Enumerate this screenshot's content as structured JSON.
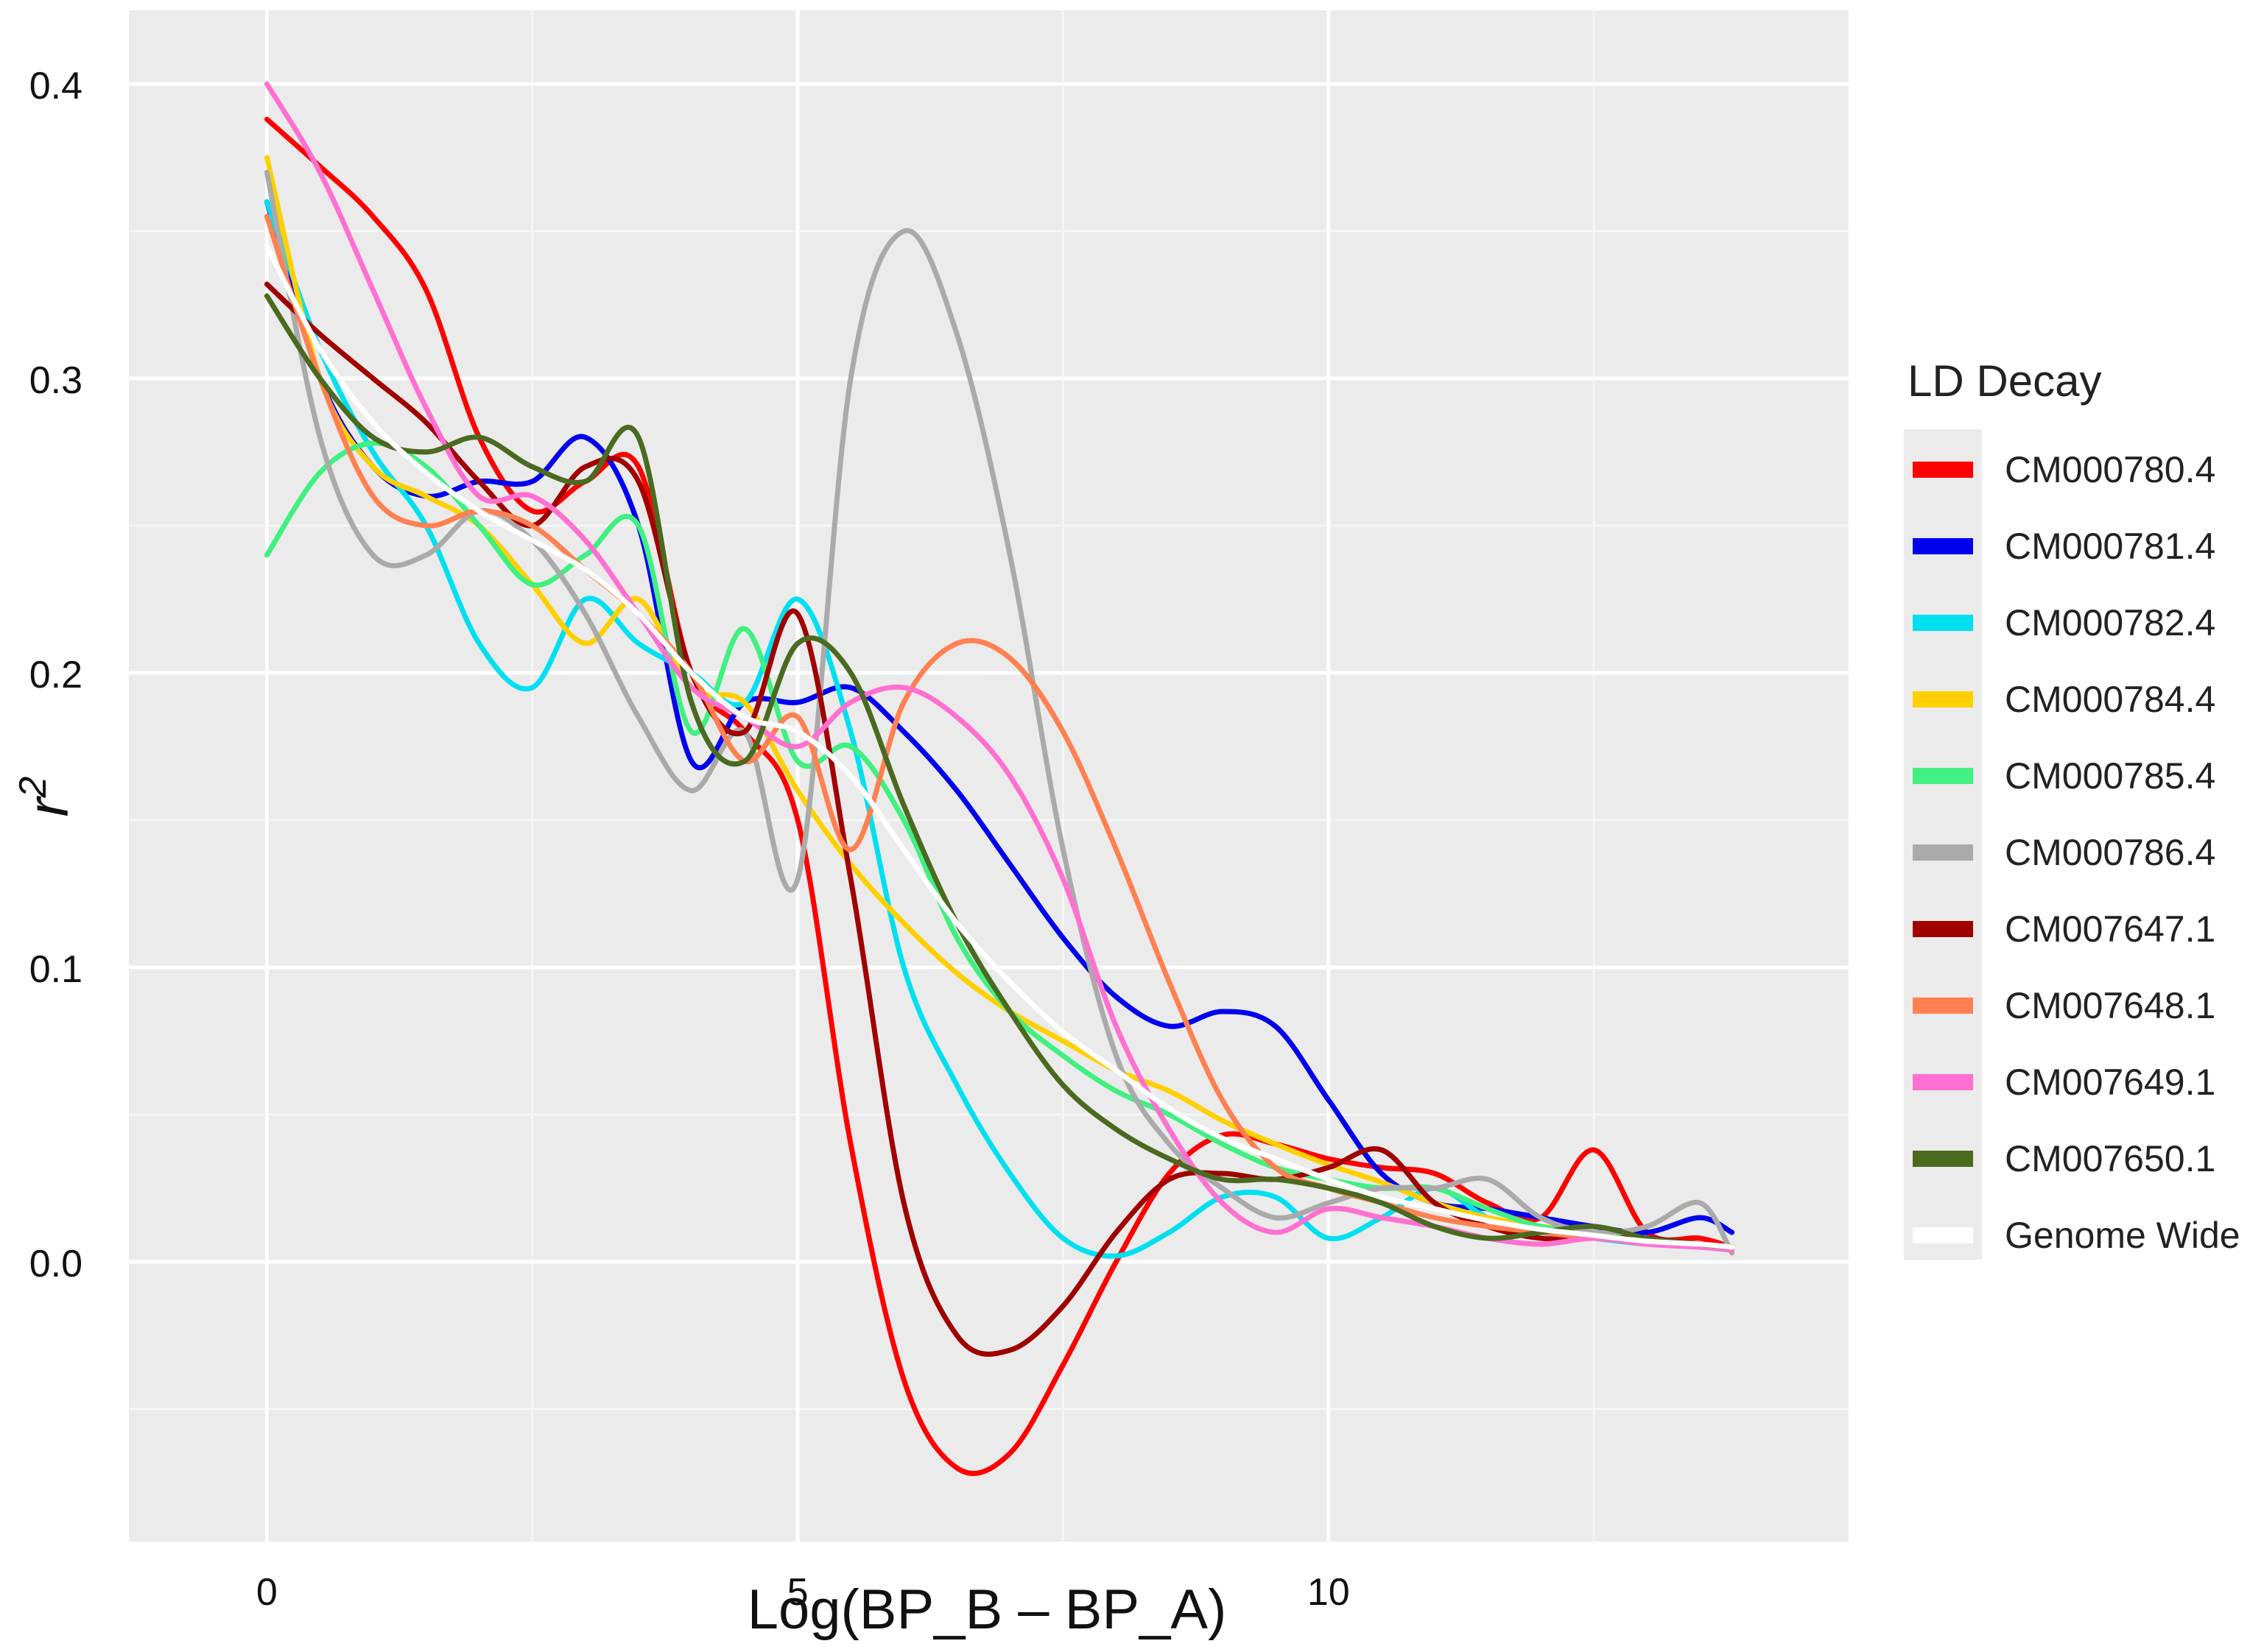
{
  "chart_data": {
    "type": "line",
    "title": "",
    "xlabel": "Log(BP_B – BP_A)",
    "ylabel": "r",
    "ylabel_superscript": "2",
    "xlim": [
      -1.3,
      14.9
    ],
    "ylim": [
      -0.095,
      0.425
    ],
    "grid": true,
    "x_ticks": [
      {
        "value": 0,
        "label": "0"
      },
      {
        "value": 5,
        "label": "5"
      },
      {
        "value": 10,
        "label": "10"
      }
    ],
    "y_ticks": [
      {
        "value": 0.0,
        "label": "0.0"
      },
      {
        "value": 0.1,
        "label": "0.1"
      },
      {
        "value": 0.2,
        "label": "0.2"
      },
      {
        "value": 0.3,
        "label": "0.3"
      },
      {
        "value": 0.4,
        "label": "0.4"
      }
    ],
    "legend": {
      "title": "LD Decay",
      "position": "right"
    },
    "series": [
      {
        "name": "CM000780.4",
        "color": "#ff0000",
        "x": [
          0,
          0.5,
          1,
          1.5,
          2,
          2.5,
          3,
          3.5,
          4,
          4.5,
          5,
          5.5,
          6,
          6.5,
          7,
          7.5,
          8,
          8.5,
          9,
          9.5,
          10,
          10.5,
          11,
          11.5,
          12,
          12.5,
          13,
          13.5,
          13.8
        ],
        "values": [
          0.388,
          0.372,
          0.355,
          0.33,
          0.28,
          0.255,
          0.265,
          0.27,
          0.2,
          0.18,
          0.15,
          0.04,
          -0.04,
          -0.07,
          -0.065,
          -0.035,
          0.0,
          0.03,
          0.043,
          0.04,
          0.035,
          0.032,
          0.03,
          0.02,
          0.015,
          0.038,
          0.01,
          0.008,
          0.005
        ]
      },
      {
        "name": "CM000781.4",
        "color": "#0000ee",
        "x": [
          0,
          0.5,
          1,
          1.5,
          2,
          2.5,
          3,
          3.5,
          4,
          4.5,
          5,
          5.5,
          6,
          6.5,
          7,
          7.5,
          8,
          8.5,
          9,
          9.5,
          10,
          10.5,
          11,
          11.5,
          12,
          12.5,
          13,
          13.5,
          13.8
        ],
        "values": [
          0.36,
          0.3,
          0.27,
          0.26,
          0.265,
          0.265,
          0.28,
          0.25,
          0.17,
          0.19,
          0.19,
          0.195,
          0.18,
          0.16,
          0.135,
          0.11,
          0.09,
          0.08,
          0.085,
          0.08,
          0.055,
          0.03,
          0.02,
          0.018,
          0.015,
          0.012,
          0.01,
          0.015,
          0.01
        ]
      },
      {
        "name": "CM000782.4",
        "color": "#00e0f0",
        "x": [
          0,
          0.5,
          1,
          1.5,
          2,
          2.5,
          3,
          3.5,
          4,
          4.5,
          5,
          5.5,
          6,
          6.5,
          7,
          7.5,
          8,
          8.5,
          9,
          9.5,
          10,
          10.5,
          11,
          11.5,
          12,
          12.5,
          13,
          13.5,
          13.8
        ],
        "values": [
          0.36,
          0.31,
          0.275,
          0.25,
          0.21,
          0.195,
          0.225,
          0.21,
          0.2,
          0.19,
          0.225,
          0.18,
          0.1,
          0.06,
          0.03,
          0.008,
          0.002,
          0.01,
          0.022,
          0.022,
          0.008,
          0.015,
          0.025,
          0.015,
          0.01,
          0.008,
          0.006,
          0.005,
          0.004
        ]
      },
      {
        "name": "CM000784.4",
        "color": "#ffd000",
        "x": [
          0,
          0.5,
          1,
          1.5,
          2,
          2.5,
          3,
          3.5,
          4,
          4.5,
          5,
          5.5,
          6,
          6.5,
          7,
          7.5,
          8,
          8.5,
          9,
          9.5,
          10,
          10.5,
          11,
          11.5,
          12,
          12.5,
          13,
          13.5,
          13.8
        ],
        "values": [
          0.375,
          0.3,
          0.27,
          0.26,
          0.25,
          0.23,
          0.21,
          0.225,
          0.195,
          0.19,
          0.16,
          0.135,
          0.115,
          0.098,
          0.085,
          0.075,
          0.065,
          0.058,
          0.048,
          0.04,
          0.033,
          0.027,
          0.02,
          0.015,
          0.012,
          0.01,
          0.008,
          0.006,
          0.005
        ]
      },
      {
        "name": "CM000785.4",
        "color": "#40f080",
        "x": [
          0,
          0.5,
          1,
          1.5,
          2,
          2.5,
          3,
          3.5,
          4,
          4.5,
          5,
          5.5,
          6,
          6.5,
          7,
          7.5,
          8,
          8.5,
          9,
          9.5,
          10,
          10.5,
          11,
          11.5,
          12,
          12.5,
          13,
          13.5,
          13.8
        ],
        "values": [
          0.24,
          0.268,
          0.278,
          0.27,
          0.25,
          0.23,
          0.24,
          0.25,
          0.18,
          0.215,
          0.17,
          0.175,
          0.15,
          0.11,
          0.085,
          0.07,
          0.058,
          0.05,
          0.04,
          0.032,
          0.028,
          0.025,
          0.025,
          0.018,
          0.012,
          0.01,
          0.008,
          0.006,
          0.005
        ]
      },
      {
        "name": "CM000786.4",
        "color": "#aaaaaa",
        "x": [
          0,
          0.5,
          1,
          1.5,
          2,
          2.5,
          3,
          3.5,
          4,
          4.5,
          5,
          5.5,
          6,
          6.5,
          7,
          7.5,
          8,
          8.5,
          9,
          9.5,
          10,
          10.5,
          11,
          11.5,
          12,
          12.5,
          13,
          13.5,
          13.8
        ],
        "values": [
          0.37,
          0.28,
          0.24,
          0.24,
          0.255,
          0.245,
          0.22,
          0.185,
          0.16,
          0.18,
          0.13,
          0.3,
          0.35,
          0.315,
          0.24,
          0.14,
          0.07,
          0.04,
          0.025,
          0.015,
          0.02,
          0.025,
          0.025,
          0.028,
          0.015,
          0.01,
          0.012,
          0.02,
          0.003
        ]
      },
      {
        "name": "CM007647.1",
        "color": "#a00000",
        "x": [
          0,
          0.5,
          1,
          1.5,
          2,
          2.5,
          3,
          3.5,
          4,
          4.5,
          5,
          5.5,
          6,
          6.5,
          7,
          7.5,
          8,
          8.5,
          9,
          9.5,
          10,
          10.5,
          11,
          11.5,
          12,
          12.5,
          13,
          13.5,
          13.8
        ],
        "values": [
          0.332,
          0.315,
          0.3,
          0.285,
          0.265,
          0.25,
          0.27,
          0.265,
          0.2,
          0.18,
          0.22,
          0.13,
          0.02,
          -0.025,
          -0.03,
          -0.015,
          0.01,
          0.028,
          0.03,
          0.028,
          0.032,
          0.038,
          0.02,
          0.012,
          0.008,
          0.008,
          0.008,
          0.006,
          0.005
        ]
      },
      {
        "name": "CM007648.1",
        "color": "#ff8050",
        "x": [
          0,
          0.5,
          1,
          1.5,
          2,
          2.5,
          3,
          3.5,
          4,
          4.5,
          5,
          5.5,
          6,
          6.5,
          7,
          7.5,
          8,
          8.5,
          9,
          9.5,
          10,
          10.5,
          11,
          11.5,
          12,
          12.5,
          13,
          13.5,
          13.8
        ],
        "values": [
          0.355,
          0.3,
          0.26,
          0.25,
          0.255,
          0.25,
          0.235,
          0.22,
          0.2,
          0.17,
          0.185,
          0.14,
          0.19,
          0.21,
          0.205,
          0.18,
          0.14,
          0.095,
          0.055,
          0.032,
          0.025,
          0.02,
          0.015,
          0.012,
          0.01,
          0.008,
          0.007,
          0.006,
          0.005
        ]
      },
      {
        "name": "CM007649.1",
        "color": "#ff70d0",
        "x": [
          0,
          0.5,
          1,
          1.5,
          2,
          2.5,
          3,
          3.5,
          4,
          4.5,
          5,
          5.5,
          6,
          6.5,
          7,
          7.5,
          8,
          8.5,
          9,
          9.5,
          10,
          10.5,
          11,
          11.5,
          12,
          12.5,
          13,
          13.5,
          13.8
        ],
        "values": [
          0.4,
          0.37,
          0.33,
          0.29,
          0.26,
          0.26,
          0.245,
          0.22,
          0.195,
          0.185,
          0.175,
          0.19,
          0.195,
          0.185,
          0.165,
          0.13,
          0.08,
          0.045,
          0.02,
          0.01,
          0.018,
          0.015,
          0.012,
          0.008,
          0.006,
          0.008,
          0.006,
          0.005,
          0.004
        ]
      },
      {
        "name": "CM007650.1",
        "color": "#4a6a20",
        "x": [
          0,
          0.5,
          1,
          1.5,
          2,
          2.5,
          3,
          3.5,
          4,
          4.5,
          5,
          5.5,
          6,
          6.5,
          7,
          7.5,
          8,
          8.5,
          9,
          9.5,
          10,
          10.5,
          11,
          11.5,
          12,
          12.5,
          13,
          13.5,
          13.8
        ],
        "values": [
          0.328,
          0.3,
          0.28,
          0.275,
          0.28,
          0.27,
          0.265,
          0.28,
          0.19,
          0.17,
          0.21,
          0.2,
          0.155,
          0.115,
          0.085,
          0.06,
          0.045,
          0.035,
          0.028,
          0.028,
          0.025,
          0.02,
          0.012,
          0.008,
          0.01,
          0.012,
          0.008,
          0.006,
          0.005
        ]
      },
      {
        "name": "Genome Wide",
        "color": "#ffffff",
        "x": [
          0,
          0.5,
          1,
          1.5,
          2,
          2.5,
          3,
          3.5,
          4,
          4.5,
          5,
          5.5,
          6,
          6.5,
          7,
          7.5,
          8,
          8.5,
          9,
          9.5,
          10,
          10.5,
          11,
          11.5,
          12,
          12.5,
          13,
          13.5,
          13.8
        ],
        "values": [
          0.345,
          0.31,
          0.285,
          0.268,
          0.255,
          0.245,
          0.235,
          0.22,
          0.2,
          0.185,
          0.18,
          0.165,
          0.14,
          0.115,
          0.095,
          0.078,
          0.065,
          0.052,
          0.042,
          0.035,
          0.028,
          0.022,
          0.018,
          0.014,
          0.011,
          0.009,
          0.007,
          0.006,
          0.005
        ]
      }
    ]
  }
}
